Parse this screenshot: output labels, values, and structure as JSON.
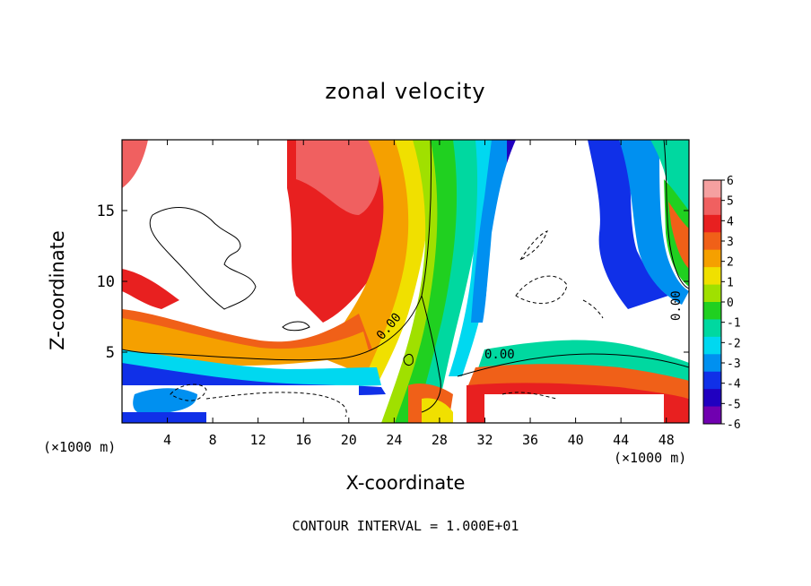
{
  "chart_data": {
    "type": "heatmap",
    "title": "zonal velocity",
    "xlabel": "X-coordinate",
    "ylabel": "Z-coordinate",
    "x_units": "(×1000 m)",
    "z_units": "(×1000 m)",
    "xlim": [
      0,
      50
    ],
    "ylim": [
      0,
      20
    ],
    "x_ticks": [
      "4",
      "8",
      "12",
      "16",
      "20",
      "24",
      "28",
      "32",
      "36",
      "40",
      "44",
      "48"
    ],
    "y_ticks": [
      "5",
      "10",
      "15"
    ],
    "colorbar": {
      "ticks": [
        "6",
        "5",
        "4",
        "3",
        "2",
        "1",
        "0",
        "-1",
        "-2",
        "-3",
        "-4",
        "-5",
        "-6"
      ],
      "range": [
        -6,
        6
      ],
      "colors": [
        "#f5a0a0",
        "#f06060",
        "#e82020",
        "#f06018",
        "#f5a000",
        "#f0e000",
        "#a0e000",
        "#20d020",
        "#00d8a0",
        "#00d8f0",
        "#0090f0",
        "#1030e8",
        "#2000c0",
        "#7000b0"
      ]
    },
    "contour_labels": [
      "0.00",
      "0.00",
      "0.00"
    ],
    "footer": "CONTOUR INTERVAL = 1.000E+01"
  }
}
